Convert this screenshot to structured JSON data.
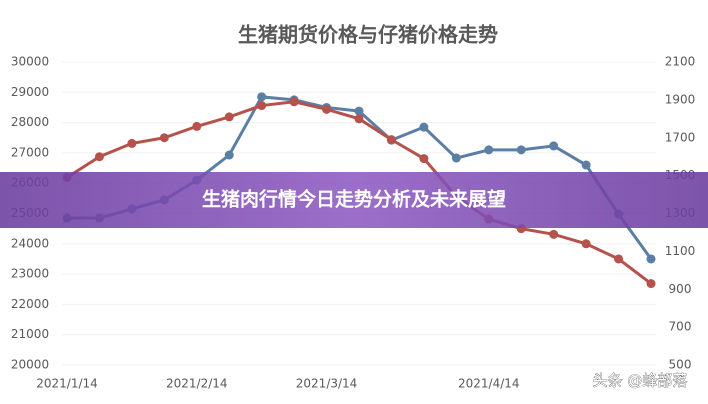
{
  "chart_data": {
    "type": "line",
    "title": "生猪期货价格与仔猪价格走势",
    "categories": [
      "2021/1/14",
      null,
      null,
      null,
      "2021/2/14",
      null,
      null,
      null,
      "2021/3/14",
      null,
      null,
      null,
      null,
      "2021/4/14",
      null,
      null,
      null,
      null,
      null
    ],
    "series": [
      {
        "color": "#5b7ea5",
        "values": [
          24850,
          24850,
          25150,
          25450,
          26100,
          26930,
          28850,
          28750,
          28500,
          28380,
          27420,
          27850,
          26830,
          27100,
          27100,
          27230,
          26600,
          24980,
          23500
        ]
      },
      {
        "color": "#b5524c",
        "axis": "y2",
        "values": [
          1490,
          1600,
          1670,
          1700,
          1760,
          1810,
          1870,
          1890,
          1850,
          1800,
          1690,
          1590,
          1390,
          1270,
          1220,
          1190,
          1140,
          1060,
          930
        ]
      }
    ],
    "ylim": [
      20000,
      30000
    ],
    "yticks": [
      20000,
      21000,
      22000,
      23000,
      24000,
      25000,
      26000,
      27000,
      28000,
      29000,
      30000
    ],
    "y2lim": [
      500,
      2100
    ],
    "y2ticks": [
      500,
      700,
      900,
      1100,
      1300,
      1500,
      1700,
      1900,
      2100
    ],
    "grid": true
  },
  "banner": "生猪肉行情今日走势分析及未来展望",
  "watermark": "头条 @蜂部落"
}
